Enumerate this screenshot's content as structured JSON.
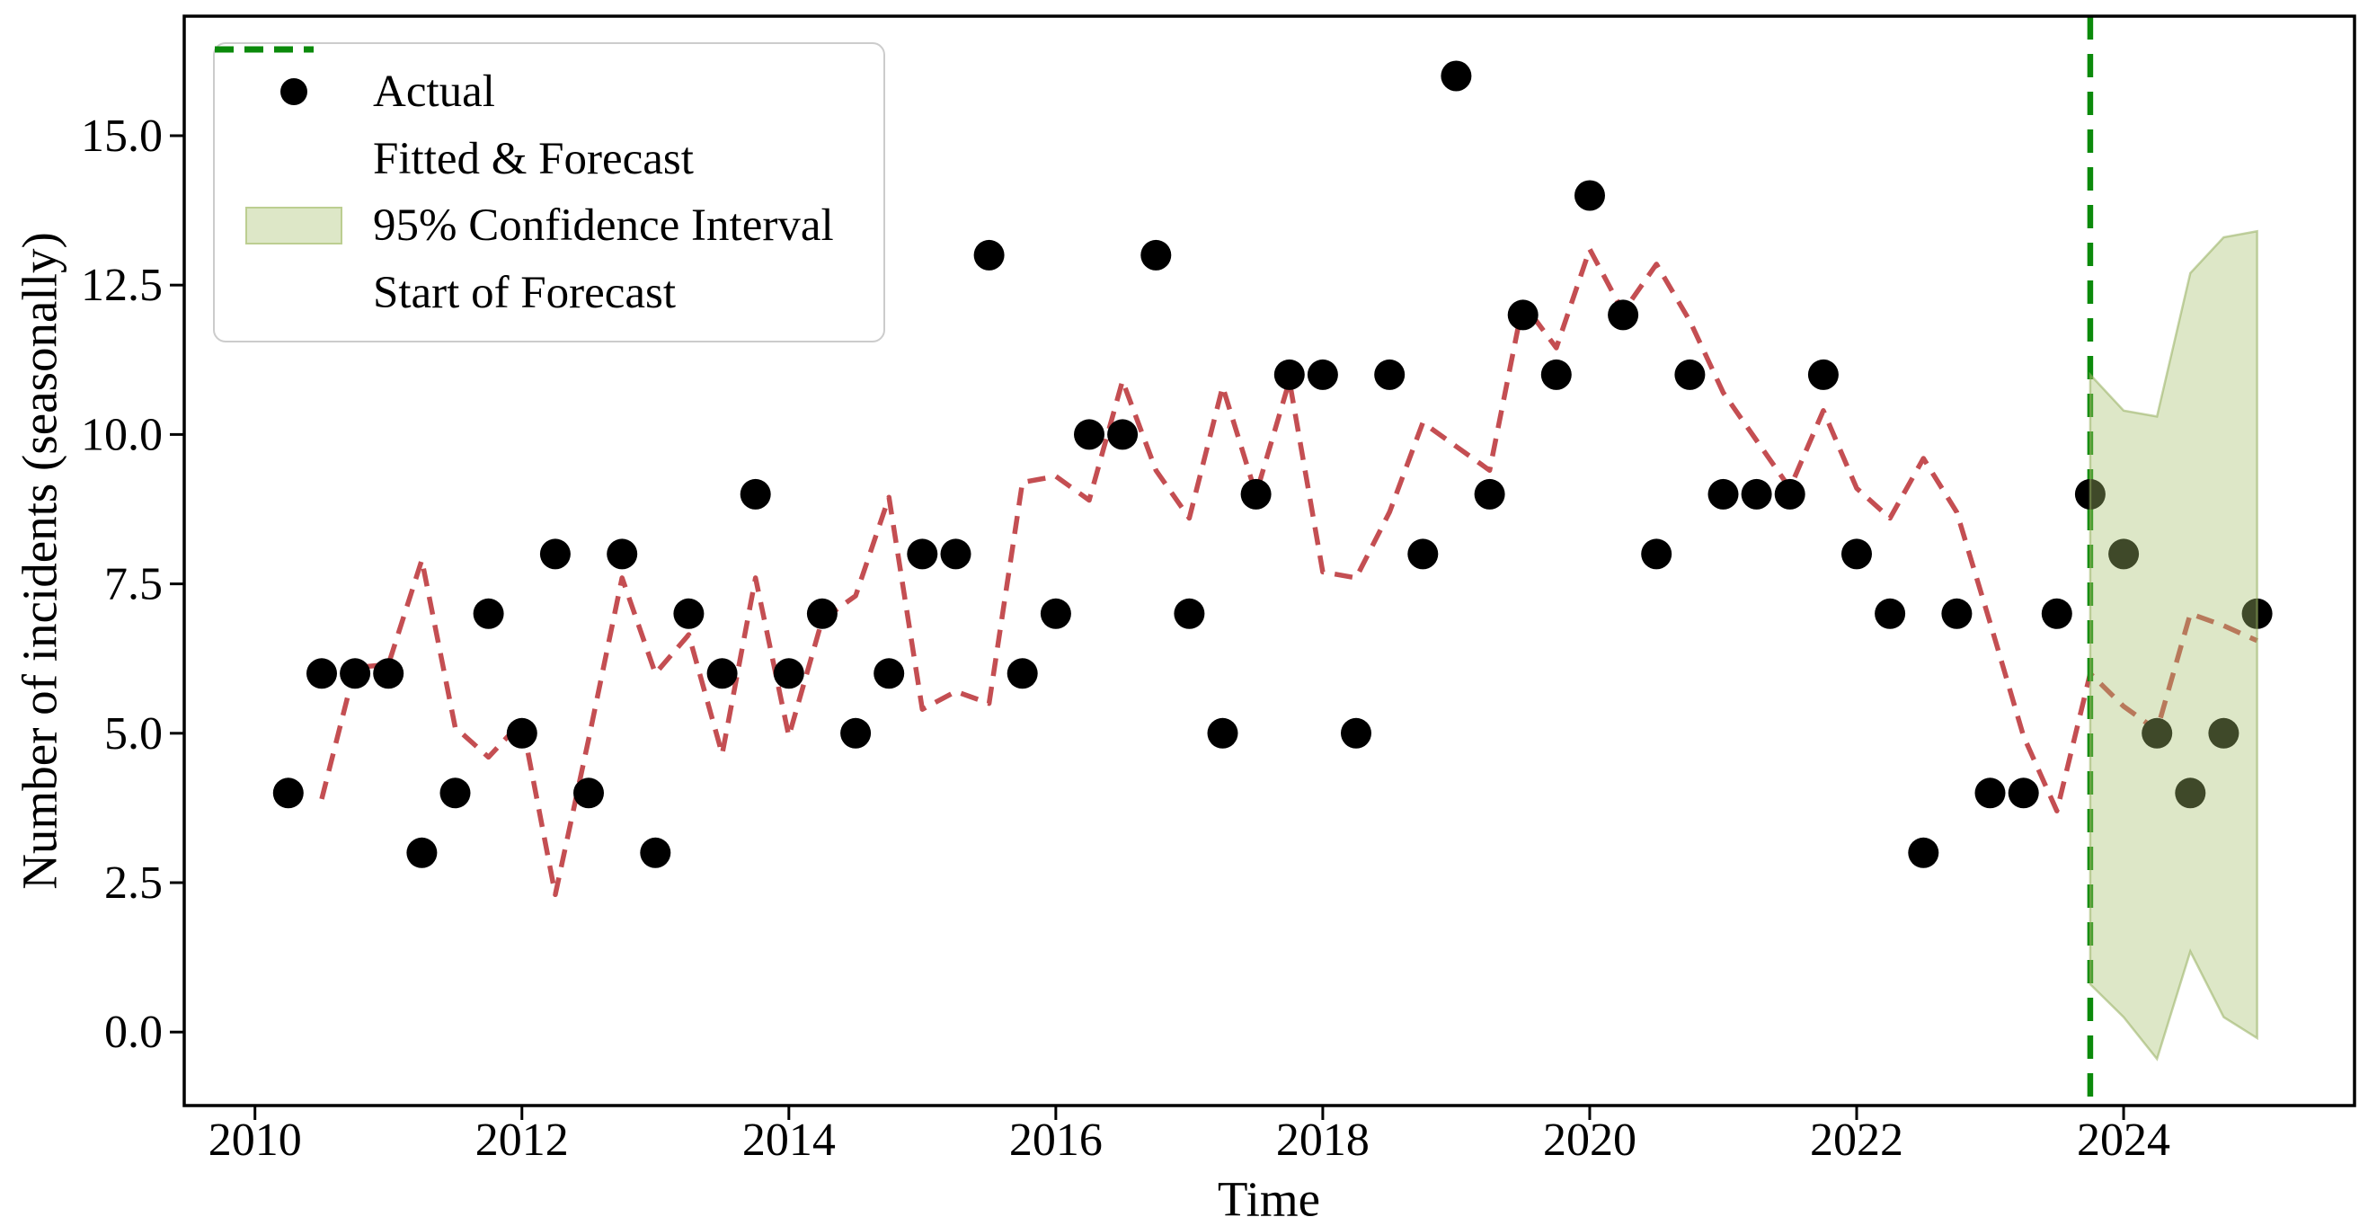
{
  "figure": {
    "background": "#ffffff"
  },
  "legend": {
    "position": "upper left",
    "items": [
      {
        "label": "Actual",
        "marker": "black-dot-icon"
      },
      {
        "label": "Fitted & Forecast",
        "marker": "red-dashed-line-icon"
      },
      {
        "label": "95% Confidence Interval",
        "marker": "green-band-swatch-icon"
      },
      {
        "label": "Start of Forecast",
        "marker": "green-dashed-line-icon"
      }
    ]
  },
  "colors": {
    "actual": "#000000",
    "fitted_forecast": "#c44e52",
    "forecast_start": "#0b8a0b",
    "ci_fill": "rgba(165,192,108,0.38)",
    "ci_edge": "rgba(150,175,95,0.55)",
    "axis": "#000000",
    "legend_border": "#cccccc"
  },
  "chart_data": {
    "type": "line",
    "title": "",
    "xlabel": "Time",
    "ylabel": "Number of incidents (seasonally)",
    "xlim": [
      2009.47,
      2025.73
    ],
    "ylim": [
      -1.23,
      17.0
    ],
    "grid": false,
    "legend_position": "upper left",
    "x_tick_values": [
      2010,
      2012,
      2014,
      2016,
      2018,
      2020,
      2022,
      2024
    ],
    "x_tick_labels": [
      "2010",
      "2012",
      "2014",
      "2016",
      "2018",
      "2020",
      "2022",
      "2024"
    ],
    "y_tick_values": [
      0,
      2.5,
      5,
      7.5,
      10,
      12.5,
      15
    ],
    "y_tick_labels": [
      "0.0",
      "2.5",
      "5.0",
      "7.5",
      "10.0",
      "12.5",
      "15.0"
    ],
    "series": [
      {
        "name": "Actual",
        "type": "scatter",
        "color": "#000000",
        "x": [
          2010.25,
          2010.5,
          2010.75,
          2011.0,
          2011.25,
          2011.5,
          2011.75,
          2012.0,
          2012.25,
          2012.5,
          2012.75,
          2013.0,
          2013.25,
          2013.5,
          2013.75,
          2014.0,
          2014.25,
          2014.5,
          2014.75,
          2015.0,
          2015.25,
          2015.5,
          2015.75,
          2016.0,
          2016.25,
          2016.5,
          2016.75,
          2017.0,
          2017.25,
          2017.5,
          2017.75,
          2018.0,
          2018.25,
          2018.5,
          2018.75,
          2019.0,
          2019.25,
          2019.5,
          2019.75,
          2020.0,
          2020.25,
          2020.5,
          2020.75,
          2021.0,
          2021.25,
          2021.5,
          2021.75,
          2022.0,
          2022.25,
          2022.5,
          2022.75,
          2023.0,
          2023.25,
          2023.5,
          2023.75,
          2024.0,
          2024.25,
          2024.5,
          2024.75,
          2025.0
        ],
        "y": [
          4,
          6,
          6,
          6,
          3,
          4,
          7,
          5,
          8,
          4,
          8,
          3,
          7,
          6,
          9,
          6,
          7,
          5,
          6,
          8,
          8,
          13,
          6,
          7,
          10,
          10,
          13,
          7,
          5,
          9,
          11,
          11,
          5,
          11,
          8,
          16,
          9,
          12,
          11,
          14,
          12,
          8,
          11,
          9,
          9,
          9,
          11,
          8,
          7,
          3,
          7,
          4,
          4,
          7,
          9,
          8,
          5,
          4,
          5,
          7
        ]
      },
      {
        "name": "Fitted & Forecast",
        "type": "dashed-line",
        "color": "#c44e52",
        "x": [
          2010.5,
          2010.75,
          2011.0,
          2011.25,
          2011.5,
          2011.75,
          2012.0,
          2012.25,
          2012.5,
          2012.75,
          2013.0,
          2013.25,
          2013.5,
          2013.75,
          2014.0,
          2014.25,
          2014.5,
          2014.75,
          2015.0,
          2015.25,
          2015.5,
          2015.75,
          2016.0,
          2016.25,
          2016.5,
          2016.75,
          2017.0,
          2017.25,
          2017.5,
          2017.75,
          2018.0,
          2018.25,
          2018.5,
          2018.75,
          2019.0,
          2019.25,
          2019.5,
          2019.75,
          2020.0,
          2020.25,
          2020.5,
          2020.75,
          2021.0,
          2021.25,
          2021.5,
          2021.75,
          2022.0,
          2022.25,
          2022.5,
          2022.75,
          2023.0,
          2023.25,
          2023.5,
          2023.75,
          2024.0,
          2024.25,
          2024.5,
          2024.75,
          2025.0
        ],
        "y": [
          3.9,
          6.1,
          6.15,
          7.9,
          5.1,
          4.6,
          5.2,
          2.3,
          4.9,
          7.6,
          6.0,
          6.65,
          4.65,
          7.6,
          4.95,
          6.9,
          7.3,
          8.95,
          5.4,
          5.7,
          5.5,
          9.2,
          9.3,
          8.9,
          10.9,
          9.4,
          8.6,
          10.8,
          9.0,
          10.9,
          7.7,
          7.6,
          8.7,
          10.2,
          9.8,
          9.4,
          12.2,
          11.45,
          13.1,
          12.05,
          12.85,
          11.9,
          10.7,
          9.9,
          9.1,
          10.4,
          9.1,
          8.6,
          9.6,
          8.7,
          6.85,
          4.95,
          3.7,
          6.0,
          5.45,
          5.05,
          7.0,
          6.8,
          6.55
        ]
      },
      {
        "name": "95% Confidence Interval",
        "type": "band",
        "color": "rgba(165,192,108,0.38)",
        "x": [
          2023.75,
          2024.0,
          2024.25,
          2024.5,
          2024.75,
          2025.0
        ],
        "upper": [
          11.0,
          10.4,
          10.3,
          12.7,
          13.3,
          13.4
        ],
        "lower": [
          0.8,
          0.25,
          -0.45,
          1.35,
          0.25,
          -0.1
        ]
      },
      {
        "name": "Start of Forecast",
        "type": "dashed-vline",
        "color": "#0b8a0b",
        "x": 2023.75
      }
    ]
  }
}
